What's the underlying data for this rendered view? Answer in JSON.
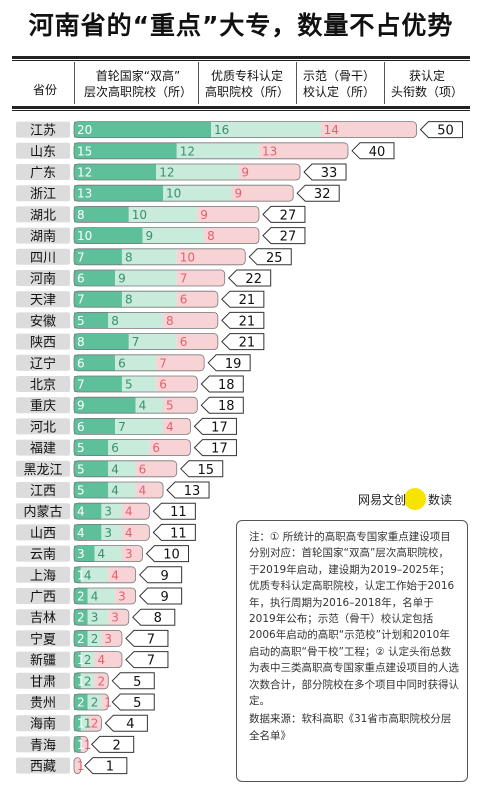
{
  "title": "河南省的“重点”大专，数量不占优势",
  "headers": {
    "province": "省份",
    "double_high": "首轮国家“双高”\n层次高职院校（所）",
    "quality": "优质专科认定\n高职院校（所）",
    "demo": "示范（骨干）\n校认定（所）",
    "total": "获认定\n头衔数（项）"
  },
  "colors": {
    "double_high": "#5ebf9b",
    "quality": "#c9ebdc",
    "demo": "#f8d3d6",
    "demo_text": "#e0626e",
    "province_bg": "#dcdcdc"
  },
  "chart_data": {
    "type": "bar",
    "stacked": true,
    "orientation": "horizontal",
    "title": "河南省的“重点”大专，数量不占优势",
    "categories": [
      "江苏",
      "山东",
      "广东",
      "浙江",
      "湖北",
      "湖南",
      "四川",
      "河南",
      "天津",
      "安徽",
      "陕西",
      "辽宁",
      "北京",
      "重庆",
      "河北",
      "福建",
      "黑龙江",
      "江西",
      "内蒙古",
      "山西",
      "云南",
      "上海",
      "广西",
      "吉林",
      "宁夏",
      "新疆",
      "甘肃",
      "贵州",
      "海南",
      "青海",
      "西藏"
    ],
    "series": [
      {
        "name": "首轮国家“双高”层次高职院校（所）",
        "values": [
          20,
          15,
          12,
          13,
          8,
          10,
          7,
          6,
          7,
          5,
          8,
          6,
          7,
          9,
          6,
          5,
          5,
          5,
          4,
          4,
          3,
          1,
          2,
          2,
          2,
          1,
          1,
          2,
          1,
          1,
          0
        ]
      },
      {
        "name": "优质专科认定高职院校（所）",
        "values": [
          16,
          12,
          12,
          10,
          10,
          9,
          8,
          9,
          8,
          8,
          7,
          6,
          5,
          4,
          7,
          6,
          4,
          4,
          3,
          3,
          4,
          4,
          4,
          3,
          2,
          2,
          2,
          2,
          1,
          0,
          0
        ]
      },
      {
        "name": "示范（骨干）校认定（所）",
        "values": [
          14,
          13,
          9,
          9,
          9,
          8,
          10,
          7,
          6,
          8,
          6,
          7,
          6,
          5,
          4,
          6,
          6,
          4,
          4,
          4,
          3,
          4,
          3,
          3,
          3,
          4,
          2,
          1,
          2,
          1,
          1
        ]
      }
    ],
    "totals": [
      50,
      40,
      33,
      32,
      27,
      27,
      25,
      22,
      21,
      21,
      21,
      19,
      18,
      18,
      17,
      17,
      15,
      13,
      11,
      11,
      10,
      9,
      9,
      8,
      7,
      7,
      5,
      5,
      4,
      2,
      1
    ]
  },
  "logo": {
    "brand": "网易文创",
    "sub": "数读"
  },
  "note": {
    "text": "注：① 所统计的高职高专国家重点建设项目分别对应：首轮国家“双高”层次高职院校，于2019年启动，建设期为2019–2025年；优质专科认定高职院校，认定工作始于2016年，执行周期为2016–2018年，名单于2019年公布；示范（骨干）校认定包括2006年启动的高职“示范校”计划和2010年启动的高职“骨干校”工程；② 认定头衔总数为表中三类高职高专国家重点建设项目的人选次数合计，部分院校在多个项目中同时获得认定。",
    "source": "数据来源：软科高职《31省市高职院校分层全名单》"
  }
}
